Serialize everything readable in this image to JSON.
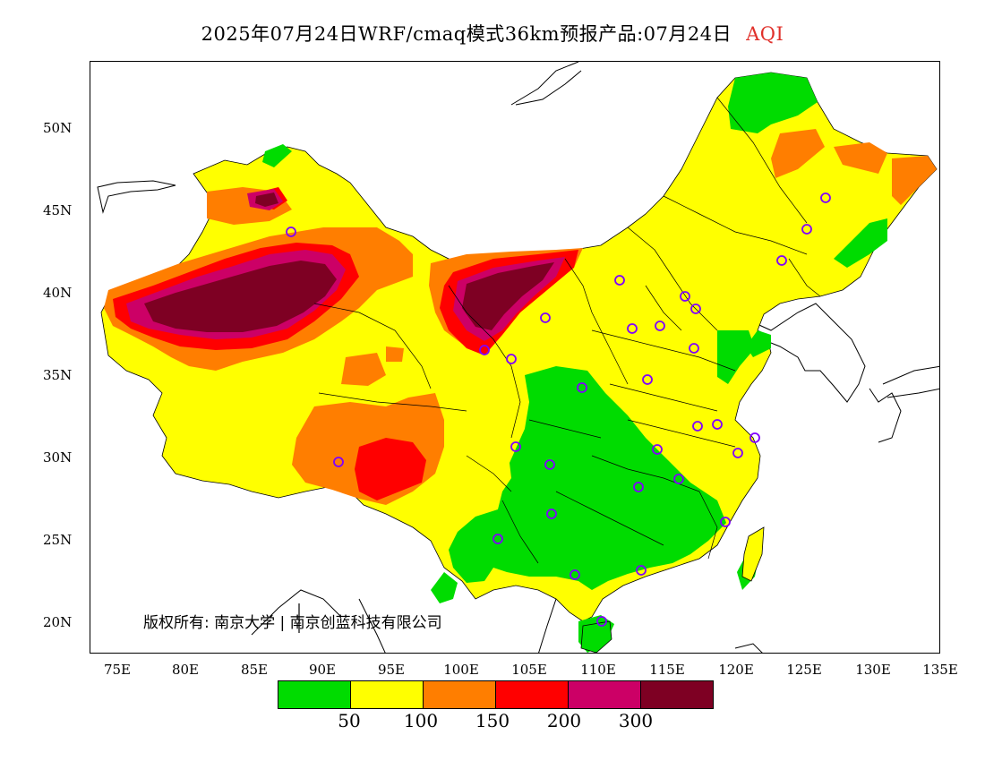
{
  "header": {
    "title": "2025年07月24日WRF/cmaq模式36km预报产品:07月24日",
    "aqi_label": "AQI"
  },
  "axes": {
    "lat_labels": [
      "50N",
      "45N",
      "40N",
      "35N",
      "30N",
      "25N",
      "20N"
    ],
    "lon_labels": [
      "75E",
      "80E",
      "85E",
      "90E",
      "95E",
      "100E",
      "105E",
      "110E",
      "115E",
      "120E",
      "125E",
      "130E",
      "135E"
    ]
  },
  "copyright": "版权所有: 南京大学 | 南京创蓝科技有限公司",
  "legend": {
    "colors": [
      "#00dc00",
      "#ffff00",
      "#ff7e00",
      "#ff0000",
      "#cc0066",
      "#7e0023"
    ],
    "labels": [
      "50",
      "100",
      "150",
      "200",
      "300"
    ]
  },
  "map": {
    "colors": {
      "good": "#00dc00",
      "moderate": "#ffff00",
      "unhealthy_sensitive": "#ff7e00",
      "unhealthy": "#ff0000",
      "very_unhealthy": "#cc0066",
      "hazardous": "#7e0023",
      "station_marker": "#8000ff",
      "boundary": "#000000"
    }
  }
}
